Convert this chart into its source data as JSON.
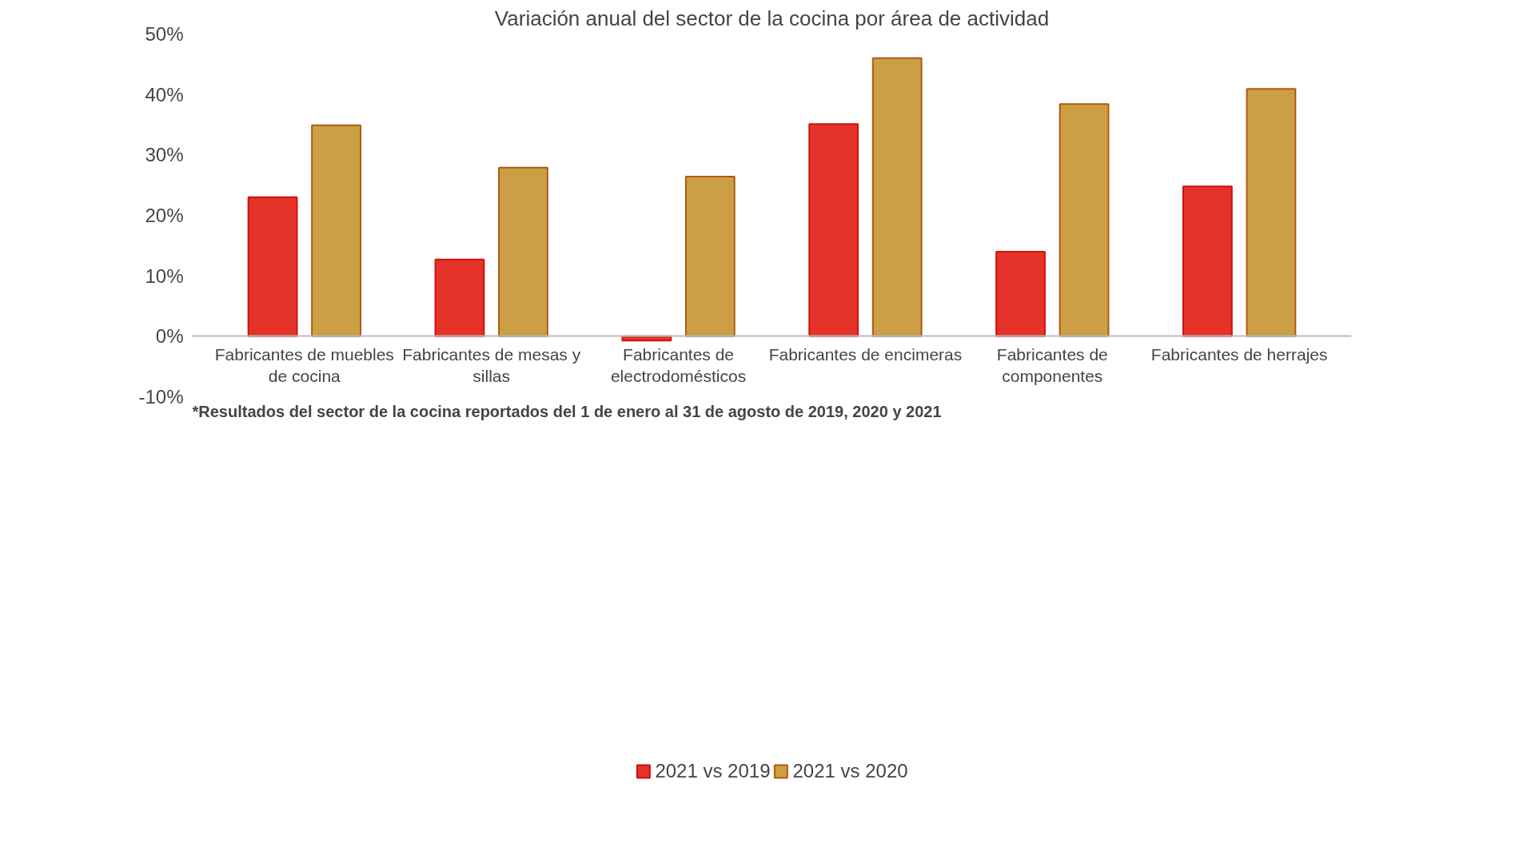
{
  "chart_data": {
    "type": "bar",
    "title": "Variación anual del sector de la cocina por área de actividad",
    "categories": [
      "Fabricantes de muebles de cocina",
      "Fabricantes de mesas y sillas",
      "Fabricantes de electrodomésticos",
      "Fabricantes de encimeras",
      "Fabricantes de componentes",
      "Fabricantes de herrajes"
    ],
    "series": [
      {
        "name": "2021 vs 2019",
        "color": "#e63329",
        "values": [
          23,
          12.7,
          -0.7,
          35.1,
          14,
          24.8
        ]
      },
      {
        "name": "2021 vs 2020",
        "color": "#cc9f45",
        "values": [
          34.9,
          27.9,
          26.4,
          46,
          38.4,
          40.9
        ]
      }
    ],
    "ylim": [
      -10,
      50
    ],
    "yticks": [
      {
        "value": -10,
        "label": "-10%"
      },
      {
        "value": 0,
        "label": "0%"
      },
      {
        "value": 10,
        "label": "10%"
      },
      {
        "value": 20,
        "label": "20%"
      },
      {
        "value": 30,
        "label": "30%"
      },
      {
        "value": 40,
        "label": "40%"
      },
      {
        "value": 50,
        "label": "50%"
      }
    ],
    "grid": false,
    "legend": "bottom",
    "annotations": [
      "*Resultados del sector de la cocina reportados del 1 de enero al 31 de agosto de 2019, 2020 y 2021"
    ]
  }
}
